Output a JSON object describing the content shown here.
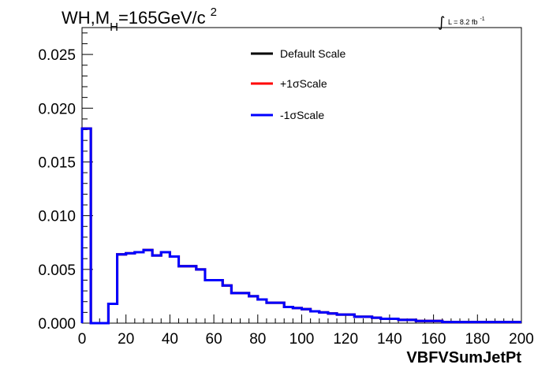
{
  "chart_data": {
    "type": "line",
    "title": {
      "prefix": "WH,M",
      "subscript": "H",
      "mid": "=165GeV/c",
      "superscript": "2"
    },
    "luminosity": {
      "integral": "∫",
      "text": "L = 8.2 fb",
      "superscript": "-1"
    },
    "xlabel": "VBFVSumJetPt",
    "ylabel": "",
    "xlim": [
      0,
      200
    ],
    "ylim": [
      0,
      0.0275
    ],
    "x_ticks": [
      "0",
      "20",
      "40",
      "60",
      "80",
      "100",
      "120",
      "140",
      "160",
      "180",
      "200"
    ],
    "y_ticks": [
      "0.000",
      "0.005",
      "0.010",
      "0.015",
      "0.020",
      "0.025"
    ],
    "bin_edges": [
      0,
      4,
      8,
      12,
      16,
      20,
      24,
      28,
      32,
      36,
      40,
      44,
      48,
      52,
      56,
      60,
      64,
      68,
      72,
      76,
      80,
      84,
      88,
      92,
      96,
      100,
      104,
      108,
      112,
      116,
      120,
      124,
      128,
      132,
      136,
      140,
      144,
      148,
      152,
      156,
      160,
      164,
      168,
      172,
      176,
      180,
      184,
      188,
      192,
      196,
      200
    ],
    "series": [
      {
        "name": "Default Scale",
        "color": "#000000",
        "values": [
          0.0181,
          0.0,
          0.0,
          0.0018,
          0.0064,
          0.0065,
          0.0066,
          0.0068,
          0.0063,
          0.0066,
          0.0062,
          0.0053,
          0.0053,
          0.005,
          0.004,
          0.004,
          0.0035,
          0.0028,
          0.0028,
          0.0025,
          0.0022,
          0.0019,
          0.0019,
          0.0015,
          0.0014,
          0.0013,
          0.0011,
          0.001,
          0.0009,
          0.0008,
          0.0008,
          0.0006,
          0.0006,
          0.0005,
          0.0004,
          0.0004,
          0.0003,
          0.0003,
          0.0002,
          0.0002,
          0.0002,
          0.0001,
          0.0001,
          0.0001,
          0.0001,
          0.0001,
          0.0001,
          0.0001,
          0.0001,
          0.0001
        ]
      },
      {
        "name": "+1σScale",
        "color": "#ff0000",
        "values": [
          0.0181,
          0.0,
          0.0,
          0.0018,
          0.0064,
          0.0065,
          0.0066,
          0.0068,
          0.0063,
          0.0066,
          0.0062,
          0.0053,
          0.0053,
          0.005,
          0.004,
          0.004,
          0.0035,
          0.0028,
          0.0028,
          0.0025,
          0.0022,
          0.0019,
          0.0019,
          0.0015,
          0.0014,
          0.0013,
          0.0011,
          0.001,
          0.0009,
          0.0008,
          0.0008,
          0.0006,
          0.0006,
          0.0005,
          0.0004,
          0.0004,
          0.0003,
          0.0003,
          0.0002,
          0.0002,
          0.0002,
          0.0001,
          0.0001,
          0.0001,
          0.0001,
          0.0001,
          0.0001,
          0.0001,
          0.0001,
          0.0001
        ]
      },
      {
        "name": "-1σScale",
        "color": "#0000ff",
        "values": [
          0.0181,
          0.0,
          0.0,
          0.0018,
          0.0064,
          0.0065,
          0.0066,
          0.0068,
          0.0063,
          0.0066,
          0.0062,
          0.0053,
          0.0053,
          0.005,
          0.004,
          0.004,
          0.0035,
          0.0028,
          0.0028,
          0.0025,
          0.0022,
          0.0019,
          0.0019,
          0.0015,
          0.0014,
          0.0013,
          0.0011,
          0.001,
          0.0009,
          0.0008,
          0.0008,
          0.0006,
          0.0006,
          0.0005,
          0.0004,
          0.0004,
          0.0003,
          0.0003,
          0.0002,
          0.0002,
          0.0002,
          0.0001,
          0.0001,
          0.0001,
          0.0001,
          0.0001,
          0.0001,
          0.0001,
          0.0001,
          0.0001
        ]
      }
    ],
    "legend_position": "top-center",
    "grid": false
  }
}
